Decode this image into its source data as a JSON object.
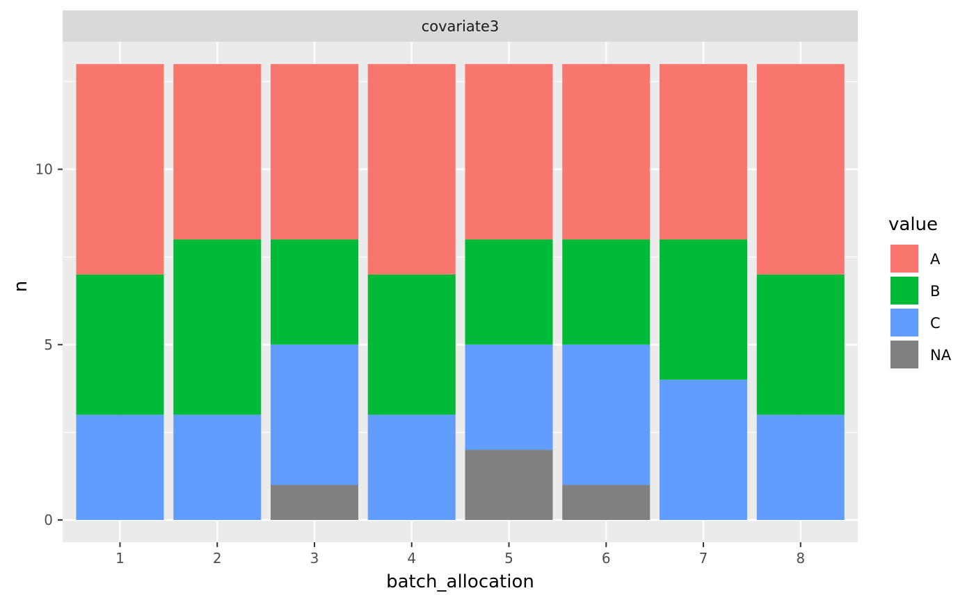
{
  "chart_data": {
    "type": "bar",
    "stacked": true,
    "facet_label": "covariate3",
    "xlabel": "batch_allocation",
    "ylabel": "n",
    "categories": [
      "1",
      "2",
      "3",
      "4",
      "5",
      "6",
      "7",
      "8"
    ],
    "ylim": [
      0,
      13
    ],
    "y_ticks": [
      0,
      5,
      10
    ],
    "grid": true,
    "legend": {
      "title": "value",
      "placement": "right"
    },
    "series": [
      {
        "name": "NA",
        "color": "#808080",
        "values": [
          0,
          0,
          1,
          0,
          2,
          1,
          0,
          0
        ]
      },
      {
        "name": "C",
        "color": "#619CFF",
        "values": [
          3,
          3,
          4,
          3,
          3,
          4,
          4,
          3
        ]
      },
      {
        "name": "B",
        "color": "#00BA38",
        "values": [
          4,
          5,
          3,
          4,
          3,
          3,
          4,
          4
        ]
      },
      {
        "name": "A",
        "color": "#F8766D",
        "values": [
          6,
          5,
          5,
          6,
          5,
          5,
          5,
          6
        ]
      }
    ],
    "legend_order": [
      "A",
      "B",
      "C",
      "NA"
    ]
  }
}
